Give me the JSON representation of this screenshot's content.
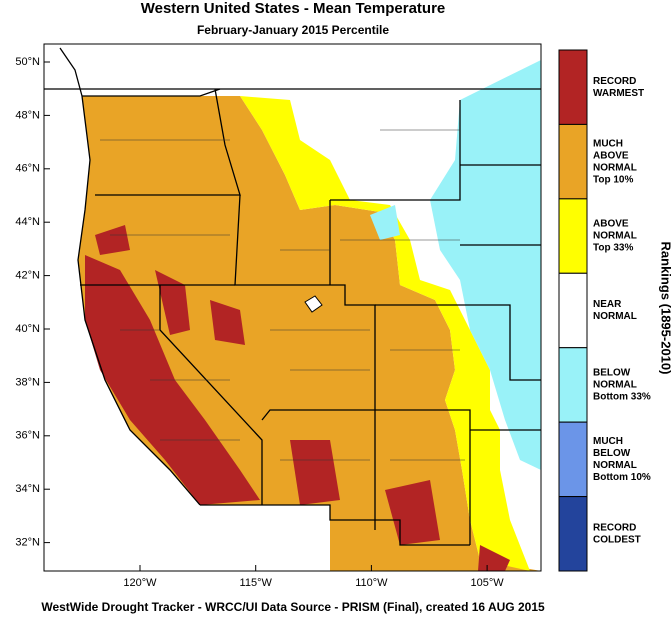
{
  "title": "Western United States - Mean Temperature",
  "subtitle": "February-January 2015 Percentile",
  "map": {
    "lat_labels": [
      "50°N",
      "48°N",
      "46°N",
      "44°N",
      "42°N",
      "40°N",
      "38°N",
      "36°N",
      "34°N",
      "32°N"
    ],
    "lon_labels": [
      "120°W",
      "115°W",
      "110°W",
      "105°W"
    ]
  },
  "legend": {
    "title": "Rankings (1895-2010)",
    "items": [
      {
        "lines": [
          "RECORD",
          "WARMEST"
        ],
        "color": "#b22424"
      },
      {
        "lines": [
          "MUCH",
          "ABOVE",
          "NORMAL",
          "Top 10%"
        ],
        "color": "#e9a426"
      },
      {
        "lines": [
          "ABOVE",
          "NORMAL",
          "Top 33%"
        ],
        "color": "#ffff00"
      },
      {
        "lines": [
          "NEAR",
          "NORMAL"
        ],
        "color": "#ffffff"
      },
      {
        "lines": [
          "BELOW",
          "NORMAL",
          "Bottom 33%"
        ],
        "color": "#99f2f8"
      },
      {
        "lines": [
          "MUCH",
          "BELOW",
          "NORMAL",
          "Bottom 10%"
        ],
        "color": "#6b95e8"
      },
      {
        "lines": [
          "RECORD",
          "COLDEST"
        ],
        "color": "#23449c"
      }
    ]
  },
  "footer": "WestWide Drought Tracker - WRCC/UI  Data Source - PRISM (Final), created 16 AUG 2015"
}
